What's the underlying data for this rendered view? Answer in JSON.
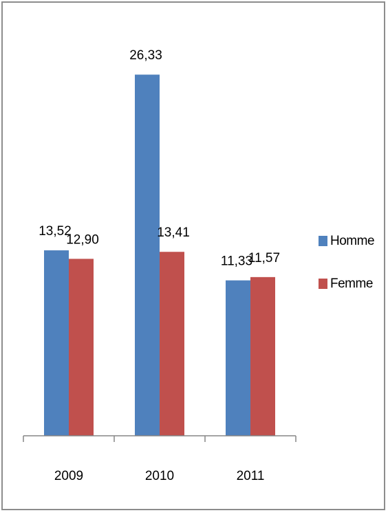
{
  "chart_data": {
    "type": "bar",
    "categories": [
      "2009",
      "2010",
      "2011"
    ],
    "series": [
      {
        "name": "Homme",
        "values": [
          13.52,
          26.33,
          11.33
        ],
        "labels": [
          "13,52",
          "26,33",
          "11,33"
        ],
        "color": "#4f81bd"
      },
      {
        "name": "Femme",
        "values": [
          12.9,
          13.41,
          11.57
        ],
        "labels": [
          "12,90",
          "13,41",
          "11,57"
        ],
        "color": "#c0504d"
      }
    ],
    "title": "",
    "xlabel": "",
    "ylabel": "",
    "ylim": [
      0,
      30
    ],
    "grid": false,
    "legend_position": "right"
  }
}
